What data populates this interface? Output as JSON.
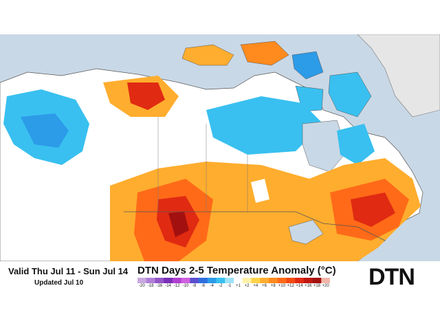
{
  "header": {
    "valid_text": "Valid Thu Jul 11 - Sun Jul 14",
    "updated_text": "Updated Jul 10",
    "title": "DTN Days 2-5 Temperature Anomaly (°C)"
  },
  "logo": {
    "text": "DTN"
  },
  "legend": {
    "tick_labels": [
      "-20",
      "-18",
      "-16",
      "-14",
      "-12",
      "-10",
      "-8",
      "-6",
      "-4",
      "-2",
      "-1",
      "+1",
      "+2",
      "+4",
      "+6",
      "+8",
      "+10",
      "+12",
      "+14",
      "+16",
      "+18",
      "+20"
    ],
    "colors": [
      "#c8a8e0",
      "#b07fd8",
      "#9355c8",
      "#7a2fb8",
      "#b03fd0",
      "#d060e0",
      "#5a4fd0",
      "#2e6fe0",
      "#2c9be8",
      "#39c0f0",
      "#9ee2f8",
      "#ffffff",
      "#fff1a8",
      "#ffd24a",
      "#ffad2e",
      "#ff8a1e",
      "#ff6a18",
      "#f44a14",
      "#e02a12",
      "#c01810",
      "#a31010",
      "#f2b6a8"
    ]
  },
  "map_colors": {
    "land_base": "#ffffff",
    "water": "#c9d8e6",
    "outside_land": "#e6e6e6",
    "cold_light": "#39c0f0",
    "cold_mid": "#2c9be8",
    "warm_light": "#ffad2e",
    "warm_mid": "#ff6a18",
    "warm_deep": "#e02a12",
    "warm_peak": "#a31010",
    "border": "#555555"
  }
}
